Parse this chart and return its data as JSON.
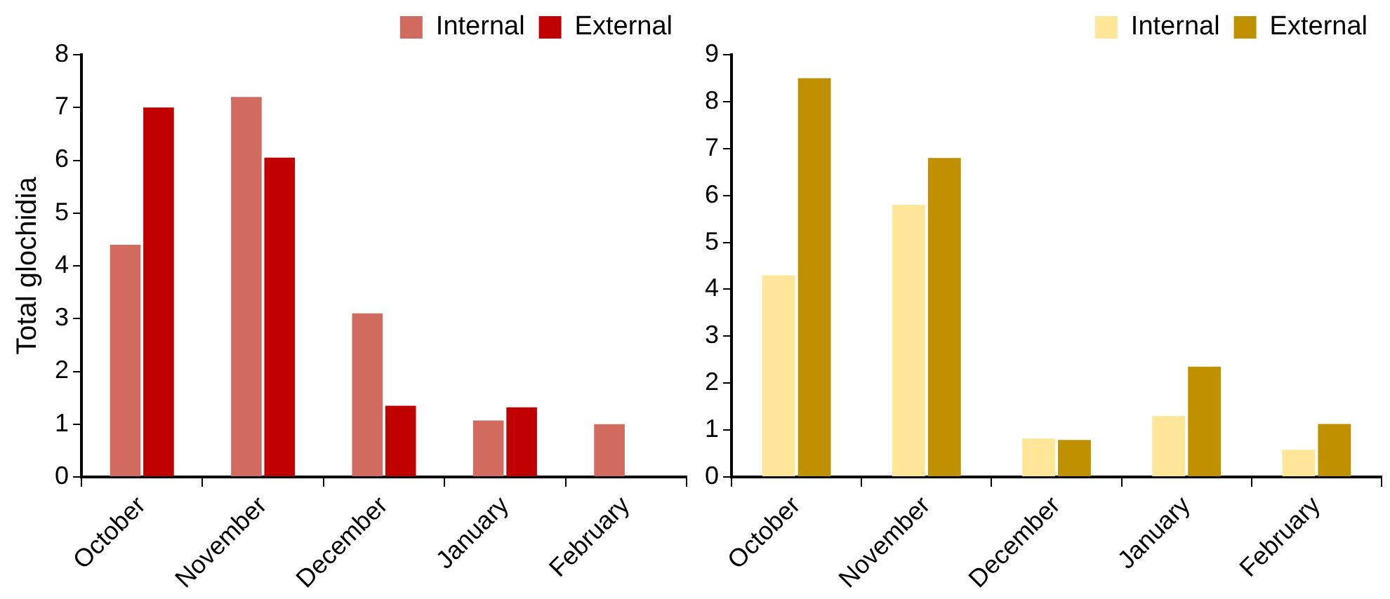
{
  "chart_data": [
    {
      "type": "bar",
      "ylabel": "Total glochidia",
      "categories": [
        "October",
        "November",
        "December",
        "January",
        "February"
      ],
      "ylim": [
        0,
        8
      ],
      "yticks": [
        0,
        1,
        2,
        3,
        4,
        5,
        6,
        7,
        8
      ],
      "grid": false,
      "legend": "top right",
      "series": [
        {
          "name": "Internal",
          "color": "#d16b5f",
          "values": [
            4.4,
            7.2,
            3.1,
            1.07,
            1.0
          ]
        },
        {
          "name": "External",
          "color": "#c00000",
          "values": [
            7.0,
            6.05,
            1.35,
            1.32,
            null
          ]
        }
      ]
    },
    {
      "type": "bar",
      "categories": [
        "October",
        "November",
        "December",
        "January",
        "February"
      ],
      "ylim": [
        0,
        9
      ],
      "yticks": [
        0,
        1,
        2,
        3,
        4,
        5,
        6,
        7,
        8,
        9
      ],
      "grid": false,
      "legend": "top right",
      "series": [
        {
          "name": "Internal",
          "color": "#ffe699",
          "values": [
            4.3,
            5.8,
            0.82,
            1.3,
            0.58
          ]
        },
        {
          "name": "External",
          "color": "#bf9000",
          "values": [
            8.5,
            6.8,
            0.79,
            2.35,
            1.13
          ]
        }
      ]
    }
  ]
}
